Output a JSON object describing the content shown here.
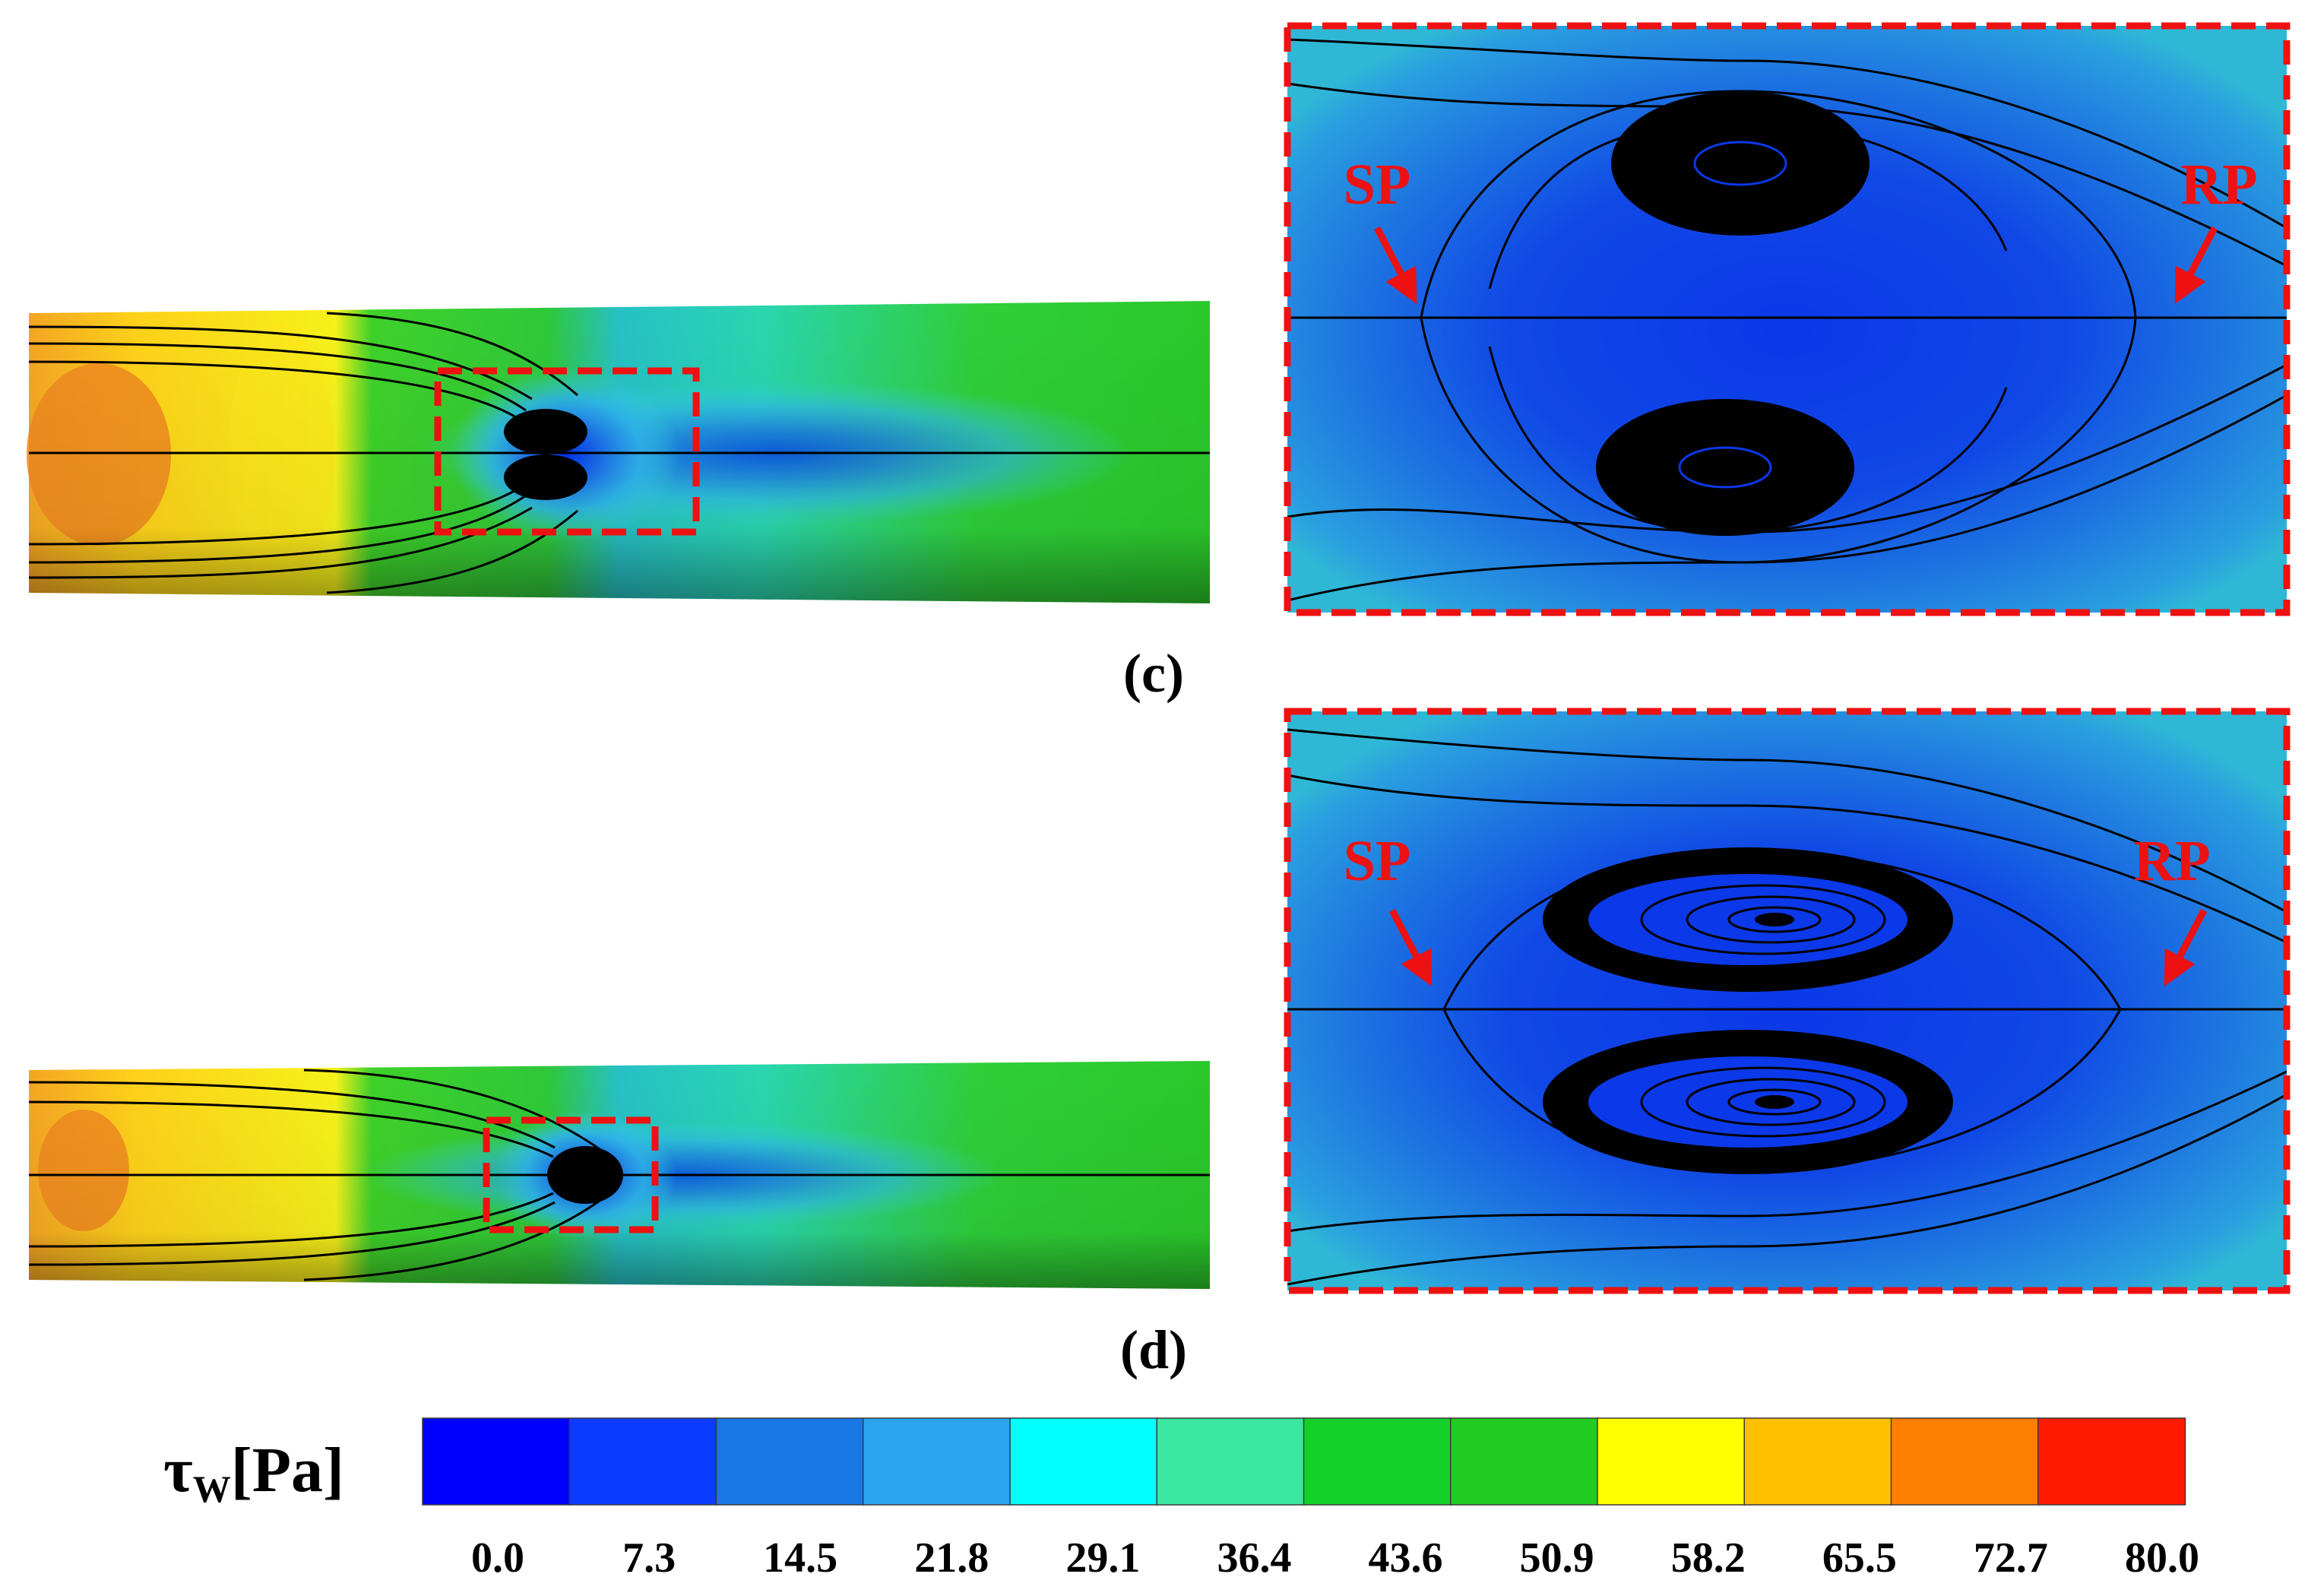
{
  "panels": {
    "c": {
      "label": "(c)"
    },
    "d": {
      "label": "(d)"
    }
  },
  "critical_points": {
    "c": {
      "separation": "SP",
      "reattachment": "RP"
    },
    "d": {
      "separation": "SP",
      "reattachment": "RP"
    }
  },
  "colorbar": {
    "symbol": "τ",
    "symbol_sub": "W",
    "unit": "[Pa]",
    "ticks": [
      "0.0",
      "7.3",
      "14.5",
      "21.8",
      "29.1",
      "36.4",
      "43.6",
      "50.9",
      "58.2",
      "65.5",
      "72.7",
      "80.0"
    ],
    "colors": [
      "#0000ff",
      "#0a3cff",
      "#1a78e6",
      "#2aa4ee",
      "#00ffff",
      "#3ae7a0",
      "#16d02a",
      "#22cc22",
      "#ffff00",
      "#ffc000",
      "#ff8000",
      "#ff1a00"
    ]
  },
  "colors": {
    "highlight_box": "#ee1111",
    "streamline": "#000000"
  }
}
